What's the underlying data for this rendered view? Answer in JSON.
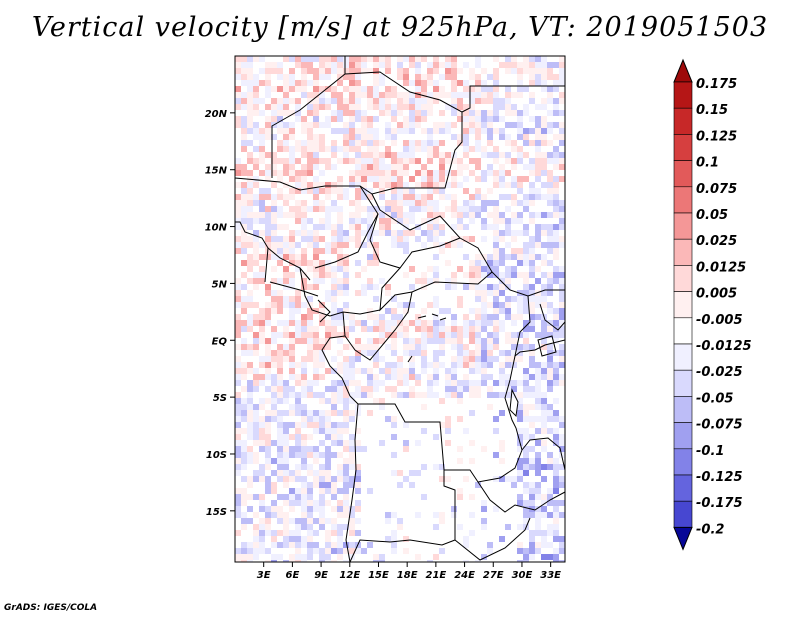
{
  "title": "Vertical velocity [m/s] at 925hPa, VT: 2019051503",
  "credit": "GrADS: IGES/COLA",
  "colors": {
    "frame": "#000000",
    "border": "#000000",
    "positive_scale": [
      "#fff0f0",
      "#ffd9d9",
      "#fbb8b8",
      "#f49797",
      "#ec7777",
      "#e25a5a",
      "#d63f3f",
      "#c72828",
      "#b51616",
      "#9e0a0a"
    ],
    "negative_scale": [
      "#f0f0ff",
      "#d9d9fd",
      "#bdbdf7",
      "#a0a0f0",
      "#8282e8",
      "#6464de",
      "#4747d1",
      "#2d2dc1",
      "#1717ad",
      "#070797"
    ]
  },
  "chart_data": {
    "type": "heatmap",
    "title": "Vertical velocity [m/s] at 925hPa, VT: 2019051503",
    "variable": "Vertical velocity",
    "units": "m/s",
    "level": "925hPa",
    "valid_time": "2019051503",
    "lon_range": [
      0,
      34.5
    ],
    "lat_range": [
      -19.5,
      25
    ],
    "x_ticks": [
      "3E",
      "6E",
      "9E",
      "12E",
      "15E",
      "18E",
      "21E",
      "24E",
      "27E",
      "30E",
      "33E"
    ],
    "y_ticks": [
      "20N",
      "15N",
      "10N",
      "5N",
      "EQ",
      "5S",
      "10S",
      "15S"
    ],
    "colorbar": {
      "labels": [
        "0.175",
        "0.15",
        "0.125",
        "0.1",
        "0.075",
        "0.05",
        "0.025",
        "0.0125",
        "0.005",
        "-0.005",
        "-0.0125",
        "-0.025",
        "-0.05",
        "-0.075",
        "-0.1",
        "-0.125",
        "-0.175",
        "-0.2"
      ],
      "extend": "both"
    },
    "notes": "Fine-scale noisy field; blue (negative) dominates east and south, red (positive) bands over the Sahel and Gulf of Guinea coast."
  }
}
